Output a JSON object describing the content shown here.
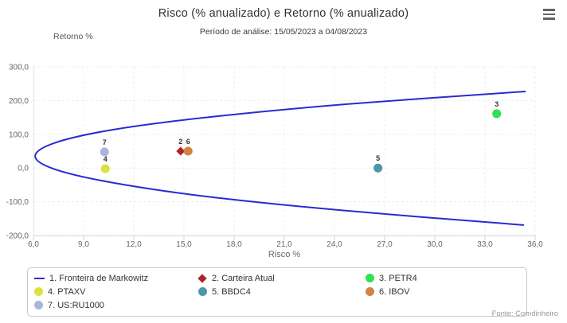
{
  "chart_data": {
    "type": "scatter",
    "title": "Risco (% anualizado) e Retorno (% anualizado)",
    "subtitle": "Período de análise: 15/05/2023 a 04/08/2023",
    "xlabel": "Risco %",
    "ylabel": "Retorno %",
    "xlim": [
      6,
      36
    ],
    "ylim": [
      -200,
      300
    ],
    "xticks": [
      6,
      9,
      12,
      15,
      18,
      21,
      24,
      27,
      30,
      33,
      36
    ],
    "yticks": [
      -200,
      -100,
      0,
      100,
      200,
      300
    ],
    "decimal_separator": ",",
    "grid": true,
    "legend_position": "bottom",
    "series": [
      {
        "name": "1. Fronteira de Markowitz",
        "type": "line",
        "marker": "line",
        "color": "#2a2ad2",
        "points": [
          [
            35.4,
            227
          ],
          [
            24.9,
            190
          ],
          [
            16.7,
            152
          ],
          [
            10.8,
            114
          ],
          [
            7.3,
            75
          ],
          [
            6.1,
            35
          ],
          [
            7.3,
            -4
          ],
          [
            10.8,
            -44
          ],
          [
            16.6,
            -86
          ],
          [
            24.8,
            -127
          ],
          [
            35.3,
            -169
          ]
        ]
      },
      {
        "name": "2. Carteira Atual",
        "type": "point",
        "marker": "diamond",
        "color": "#b12227",
        "label": "2",
        "x": 14.8,
        "y": 50
      },
      {
        "name": "3. PETR4",
        "type": "point",
        "marker": "circle",
        "color": "#2ee052",
        "label": "3",
        "x": 33.7,
        "y": 161
      },
      {
        "name": "4. PTAXV",
        "type": "point",
        "marker": "circle",
        "color": "#d9e33c",
        "label": "4",
        "x": 10.3,
        "y": -2
      },
      {
        "name": "5. BBDC4",
        "type": "point",
        "marker": "circle",
        "color": "#4e97a8",
        "label": "5",
        "x": 26.6,
        "y": 0
      },
      {
        "name": "6. IBOV",
        "type": "point",
        "marker": "circle",
        "color": "#d08344",
        "label": "6",
        "x": 15.25,
        "y": 50
      },
      {
        "name": "7. US:RU1000",
        "type": "point",
        "marker": "circle",
        "color": "#a7b7d9",
        "label": "7",
        "x": 10.25,
        "y": 48
      }
    ]
  },
  "source": "Fonte: Comdinheiro"
}
